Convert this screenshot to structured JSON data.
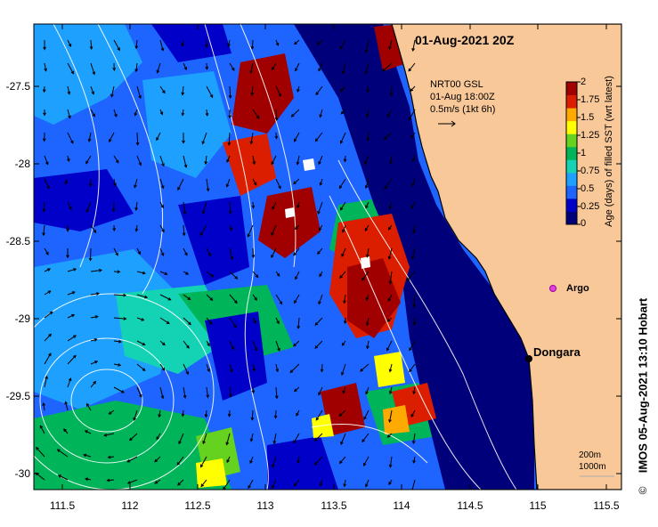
{
  "title": "01-Aug-2021 20Z",
  "vector_legend": {
    "line1": "NRT00 GSL",
    "line2": "01-Aug 18:00Z",
    "line3": "0.5m/s (1kt 6h)"
  },
  "colorbar": {
    "title": "Age (days) of filled SST (wrt latest)",
    "ticks": [
      "2",
      "1.75",
      "1.5",
      "1.25",
      "1",
      "0.75",
      "0.5",
      "0.25",
      "0"
    ],
    "colors": [
      "#00007a",
      "#0000c8",
      "#1e64ff",
      "#1ea0ff",
      "#14d2b4",
      "#00b45a",
      "#64d21e",
      "#ffff00",
      "#ffaa00",
      "#dc1e00",
      "#a00000"
    ]
  },
  "axes": {
    "y_ticks": [
      "-27.5",
      "-28",
      "-28.5",
      "-29",
      "-29.5",
      "-30"
    ],
    "x_ticks": [
      "111.5",
      "112",
      "112.5",
      "113",
      "113.5",
      "114",
      "114.5",
      "115",
      "115.5"
    ]
  },
  "places": {
    "dongara": "Dongara",
    "argo": "Argo"
  },
  "scale": {
    "line1": "200m",
    "line2": "1000m"
  },
  "credit": "IMOS 05-Aug-2021 13:10 Hobart",
  "credit_symbol": "©",
  "colors": {
    "land": "#f9c898",
    "ocean_base": "#1e64ff",
    "deep_blue": "#00007a"
  }
}
